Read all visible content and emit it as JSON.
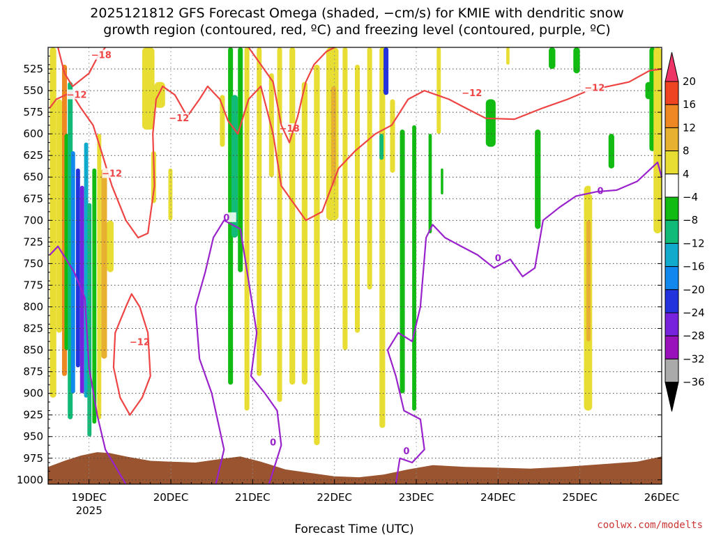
{
  "colors": {
    "frame": "#000000",
    "snow_contour": "#ee4444",
    "freezing_contour": "#9922cc",
    "terrain": "#9a5530",
    "credit": "#cc3333"
  },
  "credit": "coolwx.com/modelts",
  "chart_data": {
    "type": "heatmap",
    "title_lines": [
      "2025121812 GFS Forecast Omega (shaded, −cm/s) for KMIE with dendritic snow",
      "growth region (contoured, red, ºC) and freezing level (contoured, purple, ºC)"
    ],
    "xlabel": "Forecast Time (UTC)",
    "ylabel": "",
    "x_ticks": [
      {
        "label": "19DEC",
        "sublabel": "2025",
        "t": 0
      },
      {
        "label": "20DEC",
        "t": 1
      },
      {
        "label": "21DEC",
        "t": 2
      },
      {
        "label": "22DEC",
        "t": 3
      },
      {
        "label": "23DEC",
        "t": 4
      },
      {
        "label": "24DEC",
        "t": 5
      },
      {
        "label": "25DEC",
        "t": 6
      },
      {
        "label": "26DEC",
        "t": 7
      }
    ],
    "xlim": [
      -0.5,
      7
    ],
    "y_levels": [
      525,
      550,
      575,
      600,
      625,
      650,
      675,
      700,
      725,
      750,
      775,
      800,
      825,
      850,
      875,
      900,
      925,
      950,
      975,
      1000
    ],
    "ylim": [
      500,
      1005
    ],
    "colorbar": {
      "labels": [
        "20",
        "16",
        "12",
        "8",
        "4",
        "−4",
        "−8",
        "−12",
        "−16",
        "−20",
        "−24",
        "−28",
        "−32",
        "−36"
      ],
      "colors": [
        "#ee3366",
        "#ee4422",
        "#ee8822",
        "#e8b030",
        "#e8dd33",
        "#ffffff",
        "#11bb11",
        "#11bb77",
        "#11aacc",
        "#1188ee",
        "#2233dd",
        "#7722dd",
        "#9911bb",
        "#aaaaaa",
        "#000000"
      ]
    },
    "shaded_omega": [
      {
        "t0": -0.48,
        "t1": -0.4,
        "p0": 500,
        "p1": 905,
        "v": 6
      },
      {
        "t0": -0.4,
        "t1": -0.33,
        "p0": 560,
        "p1": 830,
        "v": 6
      },
      {
        "t0": -0.33,
        "t1": -0.27,
        "p0": 520,
        "p1": 880,
        "v": 14
      },
      {
        "t0": -0.3,
        "t1": -0.24,
        "p0": 600,
        "p1": 850,
        "v": -6
      },
      {
        "t0": -0.26,
        "t1": -0.2,
        "p0": 540,
        "p1": 930,
        "v": -10
      },
      {
        "t0": -0.22,
        "t1": -0.17,
        "p0": 620,
        "p1": 900,
        "v": -18
      },
      {
        "t0": -0.16,
        "t1": -0.11,
        "p0": 640,
        "p1": 870,
        "v": -22
      },
      {
        "t0": -0.11,
        "t1": -0.06,
        "p0": 660,
        "p1": 900,
        "v": -26
      },
      {
        "t0": -0.06,
        "t1": -0.01,
        "p0": 610,
        "p1": 905,
        "v": -14
      },
      {
        "t0": -0.02,
        "t1": 0.03,
        "p0": 680,
        "p1": 950,
        "v": -10
      },
      {
        "t0": 0.04,
        "t1": 0.09,
        "p0": 640,
        "p1": 935,
        "v": -6
      },
      {
        "t0": 0.1,
        "t1": 0.15,
        "p0": 600,
        "p1": 930,
        "v": 6
      },
      {
        "t0": 0.15,
        "t1": 0.22,
        "p0": 640,
        "p1": 860,
        "v": 10
      },
      {
        "t0": 0.22,
        "t1": 0.3,
        "p0": 700,
        "p1": 760,
        "v": 6
      },
      {
        "t0": 0.65,
        "t1": 0.8,
        "p0": 500,
        "p1": 595,
        "v": 6
      },
      {
        "t0": 0.8,
        "t1": 0.93,
        "p0": 540,
        "p1": 570,
        "v": 6
      },
      {
        "t0": 0.76,
        "t1": 0.82,
        "p0": 620,
        "p1": 680,
        "v": 6
      },
      {
        "t0": 0.97,
        "t1": 1.02,
        "p0": 640,
        "p1": 700,
        "v": 6
      },
      {
        "t0": 1.6,
        "t1": 1.66,
        "p0": 555,
        "p1": 615,
        "v": 6
      },
      {
        "t0": 1.7,
        "t1": 1.76,
        "p0": 500,
        "p1": 890,
        "v": -6
      },
      {
        "t0": 1.74,
        "t1": 1.82,
        "p0": 555,
        "p1": 720,
        "v": -10
      },
      {
        "t0": 1.82,
        "t1": 1.88,
        "p0": 500,
        "p1": 760,
        "v": -6
      },
      {
        "t0": 1.9,
        "t1": 1.96,
        "p0": 500,
        "p1": 920,
        "v": 6
      },
      {
        "t0": 2.05,
        "t1": 2.11,
        "p0": 500,
        "p1": 880,
        "v": 6
      },
      {
        "t0": 2.2,
        "t1": 2.26,
        "p0": 530,
        "p1": 650,
        "v": 6
      },
      {
        "t0": 2.3,
        "t1": 2.36,
        "p0": 500,
        "p1": 910,
        "v": 6
      },
      {
        "t0": 2.45,
        "t1": 2.52,
        "p0": 500,
        "p1": 890,
        "v": 6
      },
      {
        "t0": 2.6,
        "t1": 2.67,
        "p0": 540,
        "p1": 890,
        "v": 6
      },
      {
        "t0": 2.75,
        "t1": 2.82,
        "p0": 520,
        "p1": 960,
        "v": 6
      },
      {
        "t0": 2.9,
        "t1": 3.05,
        "p0": 500,
        "p1": 700,
        "v": 6
      },
      {
        "t0": 2.96,
        "t1": 3.02,
        "p0": 545,
        "p1": 660,
        "v": 10
      },
      {
        "t0": 3.1,
        "t1": 3.16,
        "p0": 500,
        "p1": 850,
        "v": 6
      },
      {
        "t0": 3.25,
        "t1": 3.31,
        "p0": 520,
        "p1": 830,
        "v": 6
      },
      {
        "t0": 3.4,
        "t1": 3.46,
        "p0": 500,
        "p1": 780,
        "v": 6
      },
      {
        "t0": 3.55,
        "t1": 3.62,
        "p0": 500,
        "p1": 940,
        "v": 6
      },
      {
        "t0": 3.55,
        "t1": 3.6,
        "p0": 600,
        "p1": 630,
        "v": -10
      },
      {
        "t0": 3.6,
        "t1": 3.66,
        "p0": 500,
        "p1": 555,
        "v": -22
      },
      {
        "t0": 3.68,
        "t1": 3.74,
        "p0": 560,
        "p1": 645,
        "v": 6
      },
      {
        "t0": 3.8,
        "t1": 3.86,
        "p0": 595,
        "p1": 900,
        "v": -6
      },
      {
        "t0": 3.95,
        "t1": 4.0,
        "p0": 590,
        "p1": 920,
        "v": -6
      },
      {
        "t0": 4.15,
        "t1": 4.19,
        "p0": 600,
        "p1": 715,
        "v": -6
      },
      {
        "t0": 4.25,
        "t1": 4.3,
        "p0": 500,
        "p1": 600,
        "v": 6
      },
      {
        "t0": 4.3,
        "t1": 4.33,
        "p0": 640,
        "p1": 670,
        "v": -6
      },
      {
        "t0": 4.85,
        "t1": 4.97,
        "p0": 560,
        "p1": 615,
        "v": -6
      },
      {
        "t0": 5.1,
        "t1": 5.14,
        "p0": 500,
        "p1": 520,
        "v": 6
      },
      {
        "t0": 5.45,
        "t1": 5.52,
        "p0": 595,
        "p1": 710,
        "v": -6
      },
      {
        "t0": 5.62,
        "t1": 5.7,
        "p0": 500,
        "p1": 525,
        "v": -6
      },
      {
        "t0": 5.92,
        "t1": 6.0,
        "p0": 500,
        "p1": 530,
        "v": -6
      },
      {
        "t0": 6.05,
        "t1": 6.15,
        "p0": 660,
        "p1": 920,
        "v": 6
      },
      {
        "t0": 6.08,
        "t1": 6.13,
        "p0": 700,
        "p1": 840,
        "v": 10
      },
      {
        "t0": 6.35,
        "t1": 6.42,
        "p0": 600,
        "p1": 640,
        "v": -6
      },
      {
        "t0": 6.8,
        "t1": 6.88,
        "p0": 540,
        "p1": 560,
        "v": -6
      },
      {
        "t0": 6.85,
        "t1": 6.92,
        "p0": 500,
        "p1": 620,
        "v": -6
      },
      {
        "t0": 6.9,
        "t1": 7.0,
        "p0": 500,
        "p1": 715,
        "v": 6
      }
    ],
    "contours": [
      {
        "name": "dendritic-min",
        "color_key": "snow_contour",
        "label": "−12",
        "label_points": [
          [
            -0.15,
            556
          ],
          [
            1.1,
            583
          ],
          [
            0.28,
            647
          ],
          [
            0.62,
            842
          ],
          [
            4.68,
            554
          ],
          [
            6.18,
            548
          ]
        ],
        "points": [
          [
            -0.48,
            570
          ],
          [
            -0.4,
            560
          ],
          [
            -0.22,
            552
          ],
          [
            -0.1,
            570
          ],
          [
            0.05,
            590
          ],
          [
            0.15,
            620
          ],
          [
            0.28,
            660
          ],
          [
            0.45,
            700
          ],
          [
            0.6,
            720
          ],
          [
            0.72,
            715
          ],
          [
            0.8,
            660
          ],
          [
            0.78,
            600
          ],
          [
            0.82,
            560
          ],
          [
            0.9,
            545
          ],
          [
            1.05,
            555
          ],
          [
            1.2,
            580
          ],
          [
            1.35,
            560
          ],
          [
            1.45,
            545
          ],
          [
            1.6,
            560
          ],
          [
            1.7,
            585
          ],
          [
            1.82,
            600
          ],
          [
            1.95,
            560
          ],
          [
            2.1,
            545
          ],
          [
            2.25,
            600
          ],
          [
            2.35,
            660
          ],
          [
            2.5,
            680
          ],
          [
            2.65,
            700
          ],
          [
            2.85,
            690
          ],
          [
            3.05,
            640
          ],
          [
            3.25,
            620
          ],
          [
            3.5,
            600
          ],
          [
            3.7,
            590
          ],
          [
            3.9,
            560
          ],
          [
            4.1,
            550
          ],
          [
            4.4,
            560
          ],
          [
            4.6,
            570
          ],
          [
            4.85,
            582
          ],
          [
            5.2,
            583
          ],
          [
            5.55,
            570
          ],
          [
            5.85,
            560
          ],
          [
            6.1,
            550
          ],
          [
            6.35,
            545
          ],
          [
            6.6,
            540
          ],
          [
            6.85,
            527
          ],
          [
            7.0,
            525
          ]
        ]
      },
      {
        "name": "dendritic-upper",
        "color_key": "snow_contour",
        "label": "−18",
        "label_points": [
          [
            0.15,
            510
          ],
          [
            2.45,
            595
          ]
        ],
        "points": [
          [
            -0.38,
            500
          ],
          [
            -0.3,
            530
          ],
          [
            -0.2,
            545
          ],
          [
            0.0,
            530
          ],
          [
            0.1,
            512
          ],
          [
            0.2,
            500
          ]
        ]
      },
      {
        "name": "dendritic-upper-2",
        "color_key": "snow_contour",
        "label": "",
        "label_points": [],
        "points": [
          [
            1.95,
            500
          ],
          [
            2.1,
            520
          ],
          [
            2.25,
            540
          ],
          [
            2.35,
            590
          ],
          [
            2.45,
            610
          ],
          [
            2.55,
            580
          ],
          [
            2.65,
            540
          ],
          [
            2.75,
            520
          ],
          [
            2.9,
            505
          ],
          [
            3.0,
            500
          ]
        ]
      },
      {
        "name": "dendritic-lower-loop",
        "color_key": "snow_contour",
        "label": "",
        "label_points": [],
        "points": [
          [
            0.45,
            800
          ],
          [
            0.32,
            830
          ],
          [
            0.3,
            870
          ],
          [
            0.38,
            905
          ],
          [
            0.5,
            925
          ],
          [
            0.65,
            905
          ],
          [
            0.75,
            880
          ],
          [
            0.72,
            830
          ],
          [
            0.62,
            800
          ],
          [
            0.52,
            785
          ],
          [
            0.45,
            800
          ]
        ]
      },
      {
        "name": "freezing-level",
        "color_key": "freezing_contour",
        "label": "0",
        "label_points": [
          [
            1.68,
            698
          ],
          [
            2.25,
            958
          ],
          [
            3.88,
            968
          ],
          [
            5.0,
            745
          ],
          [
            6.25,
            667
          ]
        ],
        "points": [
          [
            -0.48,
            740
          ],
          [
            -0.38,
            730
          ],
          [
            -0.28,
            745
          ],
          [
            -0.18,
            760
          ],
          [
            -0.05,
            790
          ],
          [
            0.0,
            870
          ],
          [
            0.1,
            925
          ],
          [
            0.2,
            965
          ],
          [
            0.45,
            1005
          ]
        ]
      },
      {
        "name": "freezing-level-2",
        "color_key": "freezing_contour",
        "label": "",
        "label_points": [],
        "points": [
          [
            1.55,
            1005
          ],
          [
            1.65,
            965
          ],
          [
            1.5,
            900
          ],
          [
            1.35,
            860
          ],
          [
            1.3,
            800
          ],
          [
            1.42,
            760
          ],
          [
            1.52,
            720
          ],
          [
            1.65,
            700
          ],
          [
            1.85,
            710
          ],
          [
            1.95,
            770
          ],
          [
            2.05,
            830
          ],
          [
            1.98,
            880
          ],
          [
            2.15,
            900
          ],
          [
            2.3,
            920
          ],
          [
            2.35,
            960
          ],
          [
            2.2,
            1005
          ]
        ]
      },
      {
        "name": "freezing-level-3",
        "color_key": "freezing_contour",
        "label": "",
        "label_points": [],
        "points": [
          [
            3.75,
            1005
          ],
          [
            3.8,
            975
          ],
          [
            3.95,
            980
          ],
          [
            4.1,
            965
          ],
          [
            4.05,
            930
          ],
          [
            3.85,
            920
          ],
          [
            3.75,
            880
          ],
          [
            3.65,
            850
          ],
          [
            3.78,
            830
          ],
          [
            3.95,
            840
          ],
          [
            4.05,
            800
          ],
          [
            4.12,
            720
          ],
          [
            4.2,
            705
          ],
          [
            4.35,
            720
          ],
          [
            4.55,
            730
          ],
          [
            4.75,
            740
          ],
          [
            4.95,
            755
          ],
          [
            5.15,
            745
          ],
          [
            5.3,
            765
          ],
          [
            5.45,
            755
          ],
          [
            5.55,
            700
          ],
          [
            5.75,
            685
          ],
          [
            5.95,
            672
          ],
          [
            6.2,
            667
          ],
          [
            6.45,
            665
          ],
          [
            6.7,
            655
          ],
          [
            6.95,
            633
          ],
          [
            7.0,
            650
          ]
        ]
      }
    ]
  }
}
